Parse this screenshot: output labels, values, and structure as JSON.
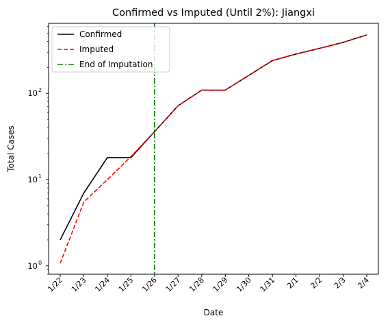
{
  "chart_data": {
    "type": "line",
    "title": "Confirmed vs Imputed (Until 2%): Jiangxi",
    "xlabel": "Date",
    "ylabel": "Total Cases",
    "yscale": "log",
    "ylim": [
      0.8,
      650
    ],
    "categories": [
      "1/22",
      "1/23",
      "1/24",
      "1/25",
      "1/26",
      "1/27",
      "1/28",
      "1/29",
      "1/30",
      "1/31",
      "2/1",
      "2/2",
      "2/3",
      "2/4"
    ],
    "y_ticks": [
      {
        "value": 1,
        "label": "10",
        "exp": "0"
      },
      {
        "value": 10,
        "label": "10",
        "exp": "1"
      },
      {
        "value": 100,
        "label": "10",
        "exp": "2"
      }
    ],
    "series": [
      {
        "name": "Confirmed",
        "color": "#000000",
        "style": "solid",
        "values": [
          2,
          7,
          18,
          18,
          36,
          72,
          109,
          109,
          162,
          240,
          286,
          333,
          391,
          476
        ]
      },
      {
        "name": "Imputed",
        "color": "#ff0000",
        "style": "dashed",
        "values": [
          1.07,
          5.5,
          10,
          18.5,
          36,
          72,
          109,
          109,
          162,
          240,
          286,
          333,
          391,
          476
        ]
      }
    ],
    "vline": {
      "name": "End of Imputation",
      "x": "1/26",
      "color": "#008000",
      "style": "dashdot"
    },
    "legend_position": "top-left",
    "grid": false
  }
}
